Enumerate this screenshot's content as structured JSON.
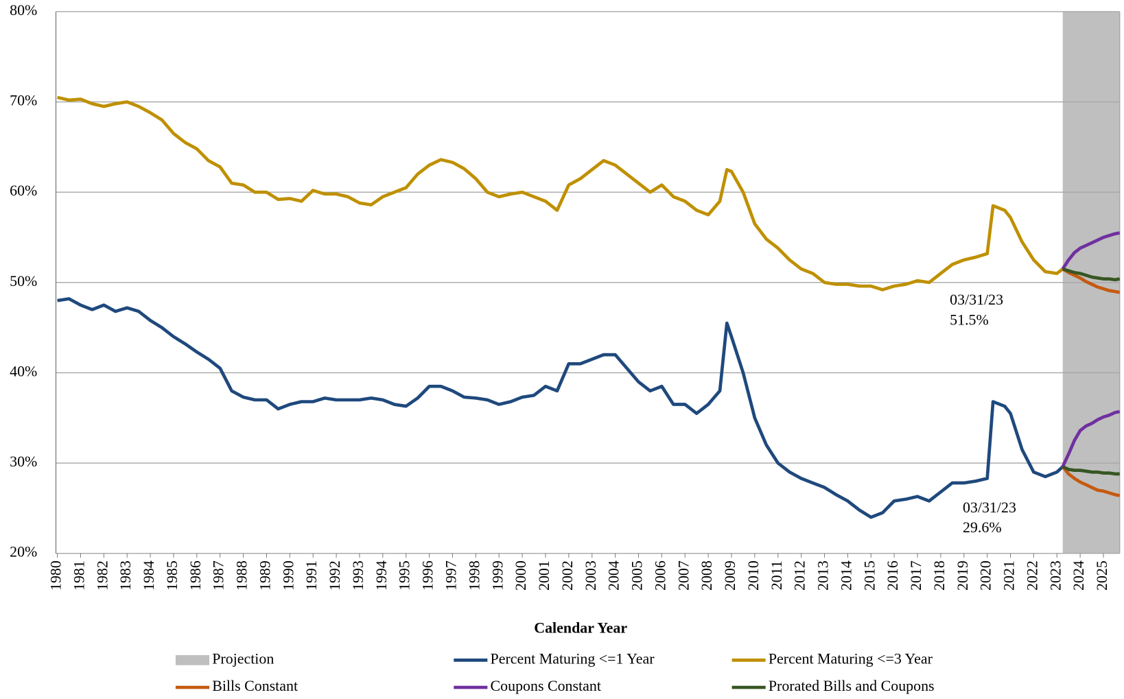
{
  "chart_data": {
    "type": "line",
    "x_label": "Calendar Year",
    "xlim": [
      1980,
      2025.7
    ],
    "xticks": [
      1980,
      1981,
      1982,
      1983,
      1984,
      1985,
      1986,
      1987,
      1988,
      1989,
      1990,
      1991,
      1992,
      1993,
      1994,
      1995,
      1996,
      1997,
      1998,
      1999,
      2000,
      2001,
      2002,
      2003,
      2004,
      2005,
      2006,
      2007,
      2008,
      2009,
      2010,
      2011,
      2012,
      2013,
      2014,
      2015,
      2016,
      2017,
      2018,
      2019,
      2020,
      2021,
      2022,
      2023,
      2024,
      2025
    ],
    "ylim": [
      20,
      80
    ],
    "yticks": [
      {
        "value": 20,
        "label": "20%"
      },
      {
        "value": 30,
        "label": "30%"
      },
      {
        "value": 40,
        "label": "40%"
      },
      {
        "value": 50,
        "label": "50%"
      },
      {
        "value": 60,
        "label": "60%"
      },
      {
        "value": 70,
        "label": "70%"
      },
      {
        "value": 80,
        "label": "80%"
      }
    ],
    "grid": true,
    "projection": {
      "label": "Projection",
      "color": "#bfbfbf",
      "start": 2023.25
    },
    "x": [
      1980,
      1980.5,
      1981,
      1981.5,
      1982,
      1982.5,
      1983,
      1983.5,
      1984,
      1984.5,
      1985,
      1985.5,
      1986,
      1986.5,
      1987,
      1987.5,
      1988,
      1988.5,
      1989,
      1989.5,
      1990,
      1990.5,
      1991,
      1991.5,
      1992,
      1992.5,
      1993,
      1993.5,
      1994,
      1994.5,
      1995,
      1995.5,
      1996,
      1996.5,
      1997,
      1997.5,
      1998,
      1998.5,
      1999,
      1999.5,
      2000,
      2000.5,
      2001,
      2001.5,
      2002,
      2002.5,
      2003,
      2003.5,
      2004,
      2004.5,
      2005,
      2005.5,
      2006,
      2006.5,
      2007,
      2007.5,
      2008,
      2008.5,
      2008.8,
      2009,
      2009.5,
      2010,
      2010.5,
      2011,
      2011.5,
      2012,
      2012.5,
      2013,
      2013.5,
      2014,
      2014.5,
      2015,
      2015.5,
      2016,
      2016.5,
      2017,
      2017.5,
      2018,
      2018.5,
      2019,
      2019.5,
      2020,
      2020.25,
      2020.75,
      2021,
      2021.5,
      2022,
      2022.5,
      2023,
      2023.25
    ],
    "projection_x": [
      2023.25,
      2023.5,
      2023.75,
      2024,
      2024.25,
      2024.5,
      2024.75,
      2025,
      2025.25,
      2025.5,
      2025.7
    ],
    "series": [
      {
        "name": "Percent Maturing <=1 Year",
        "color": "#1f497d",
        "values": [
          48.0,
          48.2,
          47.5,
          47.0,
          47.5,
          46.8,
          47.2,
          46.8,
          45.8,
          45.0,
          44.0,
          43.2,
          42.3,
          41.5,
          40.5,
          38.0,
          37.3,
          37.0,
          37.0,
          36.0,
          36.5,
          36.8,
          36.8,
          37.2,
          37.0,
          37.0,
          37.0,
          37.2,
          37.0,
          36.5,
          36.3,
          37.2,
          38.5,
          38.5,
          38.0,
          37.3,
          37.2,
          37.0,
          36.5,
          36.8,
          37.3,
          37.5,
          38.5,
          38.0,
          41.0,
          41.0,
          41.5,
          42.0,
          42.0,
          40.5,
          39.0,
          38.0,
          38.5,
          36.5,
          36.5,
          35.5,
          36.5,
          38.0,
          45.5,
          44.0,
          40.0,
          35.0,
          32.0,
          30.0,
          29.0,
          28.3,
          27.8,
          27.3,
          26.5,
          25.8,
          24.8,
          24.0,
          24.5,
          25.8,
          26.0,
          26.3,
          25.8,
          26.8,
          27.8,
          27.8,
          28.0,
          28.3,
          36.8,
          36.3,
          35.5,
          31.5,
          29.0,
          28.5,
          29.0,
          29.6
        ]
      },
      {
        "name": "Percent Maturing <=3 Year",
        "color": "#bf9000",
        "values": [
          70.5,
          70.2,
          70.3,
          69.8,
          69.5,
          69.8,
          70.0,
          69.5,
          68.8,
          68.0,
          66.5,
          65.5,
          64.8,
          63.5,
          62.8,
          61.0,
          60.8,
          60.0,
          60.0,
          59.2,
          59.3,
          59.0,
          60.2,
          59.8,
          59.8,
          59.5,
          58.8,
          58.6,
          59.5,
          60.0,
          60.5,
          62.0,
          63.0,
          63.6,
          63.3,
          62.6,
          61.5,
          60.0,
          59.5,
          59.8,
          60.0,
          59.5,
          59.0,
          58.0,
          60.8,
          61.5,
          62.5,
          63.5,
          63.0,
          62.0,
          61.0,
          60.0,
          60.8,
          59.5,
          59.0,
          58.0,
          57.5,
          59.0,
          62.5,
          62.3,
          60.0,
          56.5,
          54.8,
          53.8,
          52.5,
          51.5,
          51.0,
          50.0,
          49.8,
          49.8,
          49.6,
          49.6,
          49.2,
          49.6,
          49.8,
          50.2,
          50.0,
          51.0,
          52.0,
          52.5,
          52.8,
          53.2,
          58.5,
          58.0,
          57.2,
          54.5,
          52.5,
          51.2,
          51.0,
          51.5
        ]
      },
      {
        "name": "Bills Constant",
        "color": "#c55a11",
        "lines": [
          [
            29.6,
            28.8,
            28.3,
            27.9,
            27.6,
            27.3,
            27.0,
            26.9,
            26.7,
            26.5,
            26.4
          ],
          [
            51.5,
            51.1,
            50.8,
            50.5,
            50.1,
            49.8,
            49.5,
            49.3,
            49.1,
            49.0,
            48.9
          ]
        ]
      },
      {
        "name": "Coupons Constant",
        "color": "#7030a0",
        "lines": [
          [
            29.6,
            31.0,
            32.5,
            33.6,
            34.1,
            34.4,
            34.8,
            35.1,
            35.3,
            35.6,
            35.7
          ],
          [
            51.5,
            52.5,
            53.3,
            53.8,
            54.1,
            54.4,
            54.7,
            55.0,
            55.2,
            55.4,
            55.5
          ]
        ]
      },
      {
        "name": "Prorated Bills and Coupons",
        "color": "#375623",
        "lines": [
          [
            29.6,
            29.3,
            29.2,
            29.2,
            29.1,
            29.0,
            29.0,
            28.9,
            28.9,
            28.8,
            28.8
          ],
          [
            51.5,
            51.3,
            51.1,
            51.0,
            50.8,
            50.6,
            50.5,
            50.4,
            50.4,
            50.3,
            50.4
          ]
        ]
      }
    ],
    "annotations": [
      {
        "lines": [
          "03/31/23",
          "51.5%"
        ]
      },
      {
        "lines": [
          "03/31/23",
          "29.6%"
        ]
      }
    ]
  }
}
